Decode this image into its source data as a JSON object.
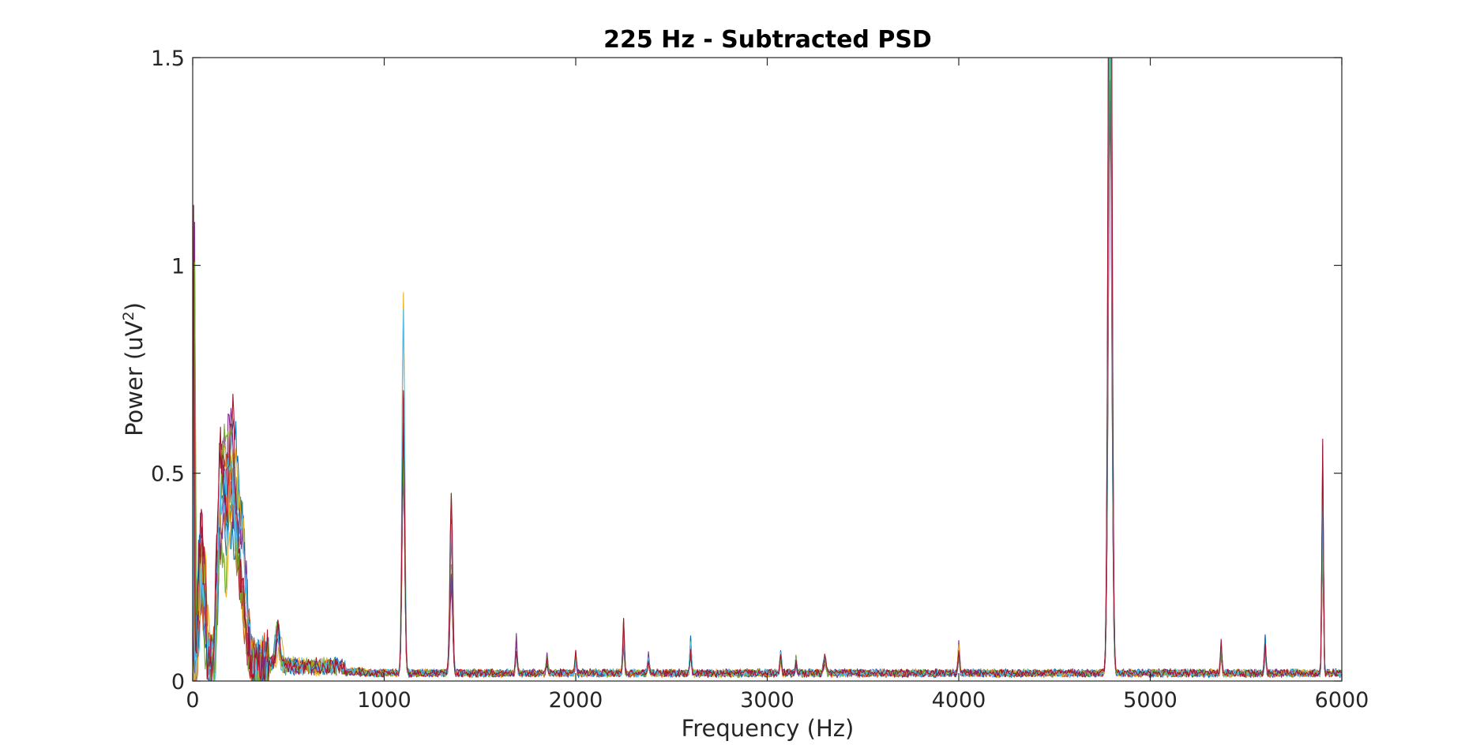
{
  "chart_data": {
    "type": "line",
    "title": "225 Hz - Subtracted PSD",
    "xlabel": "Frequency (Hz)",
    "ylabel_main": "Power (uV",
    "ylabel_sup": "2",
    "ylabel_close": ")",
    "xlim": [
      0,
      6000
    ],
    "ylim": [
      0,
      1.5
    ],
    "xticks": [
      0,
      1000,
      2000,
      3000,
      4000,
      5000,
      6000
    ],
    "xtick_labels": [
      "0",
      "1000",
      "2000",
      "3000",
      "4000",
      "5000",
      "6000"
    ],
    "yticks": [
      0,
      0.5,
      1,
      1.5
    ],
    "ytick_labels": [
      "0",
      "0.5",
      "1",
      "1.5"
    ],
    "grid": false,
    "legend": "none",
    "peaks": [
      {
        "f": 3,
        "a": 1.5,
        "w": 3
      },
      {
        "f": 50,
        "a": 0.3,
        "w": 15
      },
      {
        "f": 150,
        "a": 0.45,
        "w": 18
      },
      {
        "f": 200,
        "a": 0.55,
        "w": 20
      },
      {
        "f": 250,
        "a": 0.35,
        "w": 25
      },
      {
        "f": 450,
        "a": 0.1,
        "w": 10
      },
      {
        "f": 1100,
        "a": 0.85,
        "w": 7
      },
      {
        "f": 1350,
        "a": 0.38,
        "w": 7
      },
      {
        "f": 1690,
        "a": 0.08,
        "w": 4
      },
      {
        "f": 1850,
        "a": 0.04,
        "w": 4
      },
      {
        "f": 2000,
        "a": 0.05,
        "w": 4
      },
      {
        "f": 2250,
        "a": 0.12,
        "w": 4
      },
      {
        "f": 2380,
        "a": 0.04,
        "w": 4
      },
      {
        "f": 2600,
        "a": 0.08,
        "w": 4
      },
      {
        "f": 3070,
        "a": 0.05,
        "w": 4
      },
      {
        "f": 3150,
        "a": 0.04,
        "w": 4
      },
      {
        "f": 3300,
        "a": 0.04,
        "w": 6
      },
      {
        "f": 4000,
        "a": 0.07,
        "w": 4
      },
      {
        "f": 4790,
        "a": 2.2,
        "w": 9
      },
      {
        "f": 5370,
        "a": 0.07,
        "w": 4
      },
      {
        "f": 5600,
        "a": 0.08,
        "w": 4
      },
      {
        "f": 5900,
        "a": 0.55,
        "w": 4
      }
    ],
    "series": [
      {
        "color": "#0072BD",
        "seed": 11
      },
      {
        "color": "#D95319",
        "seed": 23
      },
      {
        "color": "#EDB120",
        "seed": 37
      },
      {
        "color": "#7E2F8E",
        "seed": 41
      },
      {
        "color": "#77AC30",
        "seed": 53
      },
      {
        "color": "#4DBEEE",
        "seed": 67
      },
      {
        "color": "#A2142F",
        "seed": 79
      },
      {
        "color": "#0072BD",
        "seed": 83
      },
      {
        "color": "#D95319",
        "seed": 97
      },
      {
        "color": "#EDB120",
        "seed": 101
      },
      {
        "color": "#7E2F8E",
        "seed": 113
      },
      {
        "color": "#77AC30",
        "seed": 127
      },
      {
        "color": "#4DBEEE",
        "seed": 131
      },
      {
        "color": "#A2142F",
        "seed": 139
      }
    ]
  }
}
